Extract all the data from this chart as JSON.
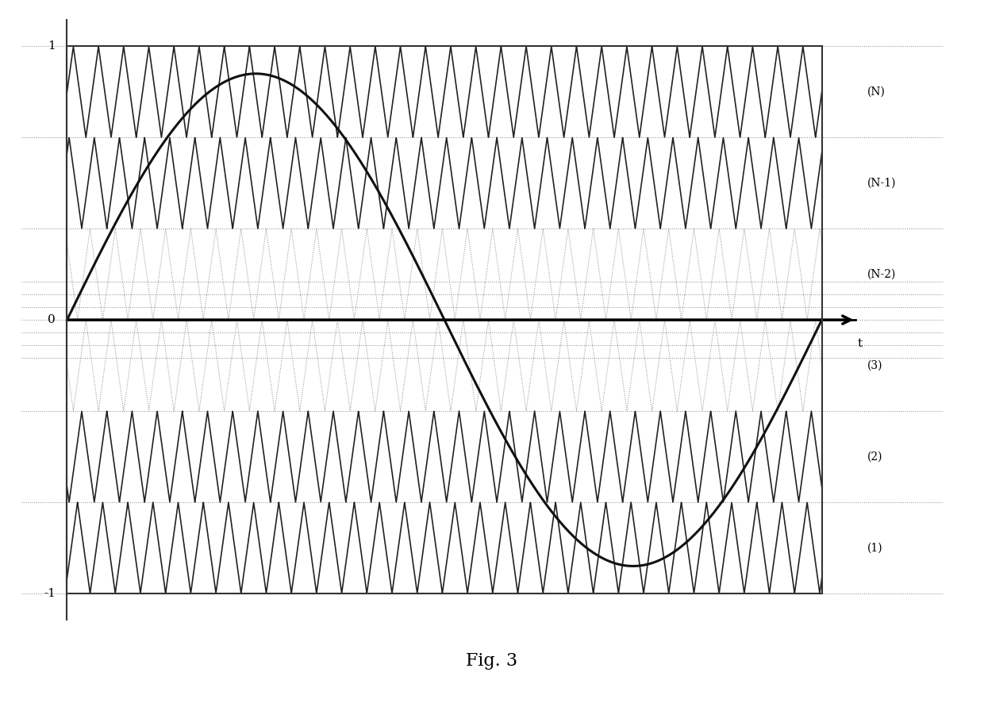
{
  "title": "Fig. 3",
  "N": 3,
  "carrier_freq": 30,
  "mod_amplitude": 2.7,
  "mod_freq": 1.0,
  "x_min": 0.0,
  "x_max": 1.0,
  "y_min": -3.0,
  "y_max": 3.0,
  "band_centers": [
    2.5,
    1.5,
    0.5,
    -0.5,
    -1.5,
    -2.5
  ],
  "right_labels": [
    "(N)",
    "(N-1)",
    "(N-2)",
    "(3)",
    "(2)",
    "(1)"
  ],
  "background_color": "#ffffff",
  "carrier_color": "#222222",
  "sinusoid_color": "#111111",
  "axis_color": "#000000",
  "dot_color": "#888888",
  "border_color": "#333333",
  "carrier_lw": 1.2,
  "sinusoid_lw": 2.2,
  "axis_lw": 2.5,
  "dot_lw": 0.7,
  "border_lw": 1.5,
  "figsize": [
    12.4,
    8.86
  ],
  "dpi": 100,
  "num_pts": 8000,
  "ytick_1": "1",
  "ytick_neg1": "-1",
  "ytick_0": "0",
  "phase_offsets": [
    0.0,
    1.0472,
    2.0944,
    3.1416,
    4.1888,
    5.236
  ]
}
